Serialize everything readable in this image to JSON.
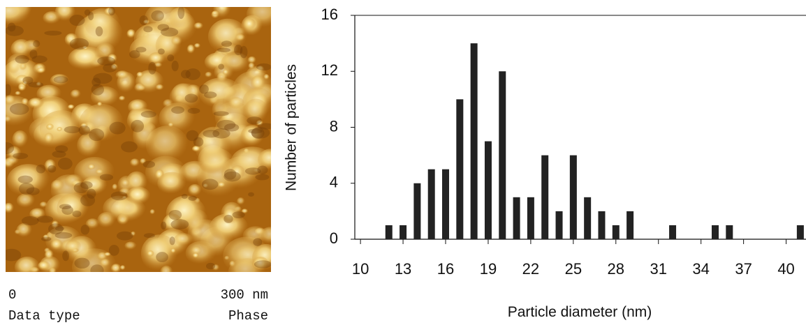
{
  "image": {
    "scale_start": "0",
    "scale_end": "300 nm",
    "data_type_label": "Data type",
    "data_type": "Phase"
  },
  "chart_data": {
    "type": "bar",
    "x": [
      12,
      13,
      14,
      15,
      16,
      17,
      18,
      19,
      20,
      21,
      22,
      23,
      24,
      25,
      26,
      27,
      28,
      29,
      32,
      35,
      36,
      41
    ],
    "values": [
      1,
      1,
      4,
      5,
      5,
      10,
      14,
      7,
      12,
      3,
      3,
      6,
      2,
      6,
      3,
      2,
      1,
      2,
      1,
      1,
      1,
      1
    ],
    "color": "#222222",
    "xlabel": "Particle diameter  (nm)",
    "ylabel": "Number of particles",
    "xlim": [
      9.6,
      41.4
    ],
    "xticks": [
      10,
      13,
      16,
      19,
      22,
      25,
      28,
      31,
      34,
      37,
      40
    ],
    "ylim": [
      0,
      16
    ],
    "yticks": [
      0,
      4,
      8,
      12,
      16
    ]
  }
}
